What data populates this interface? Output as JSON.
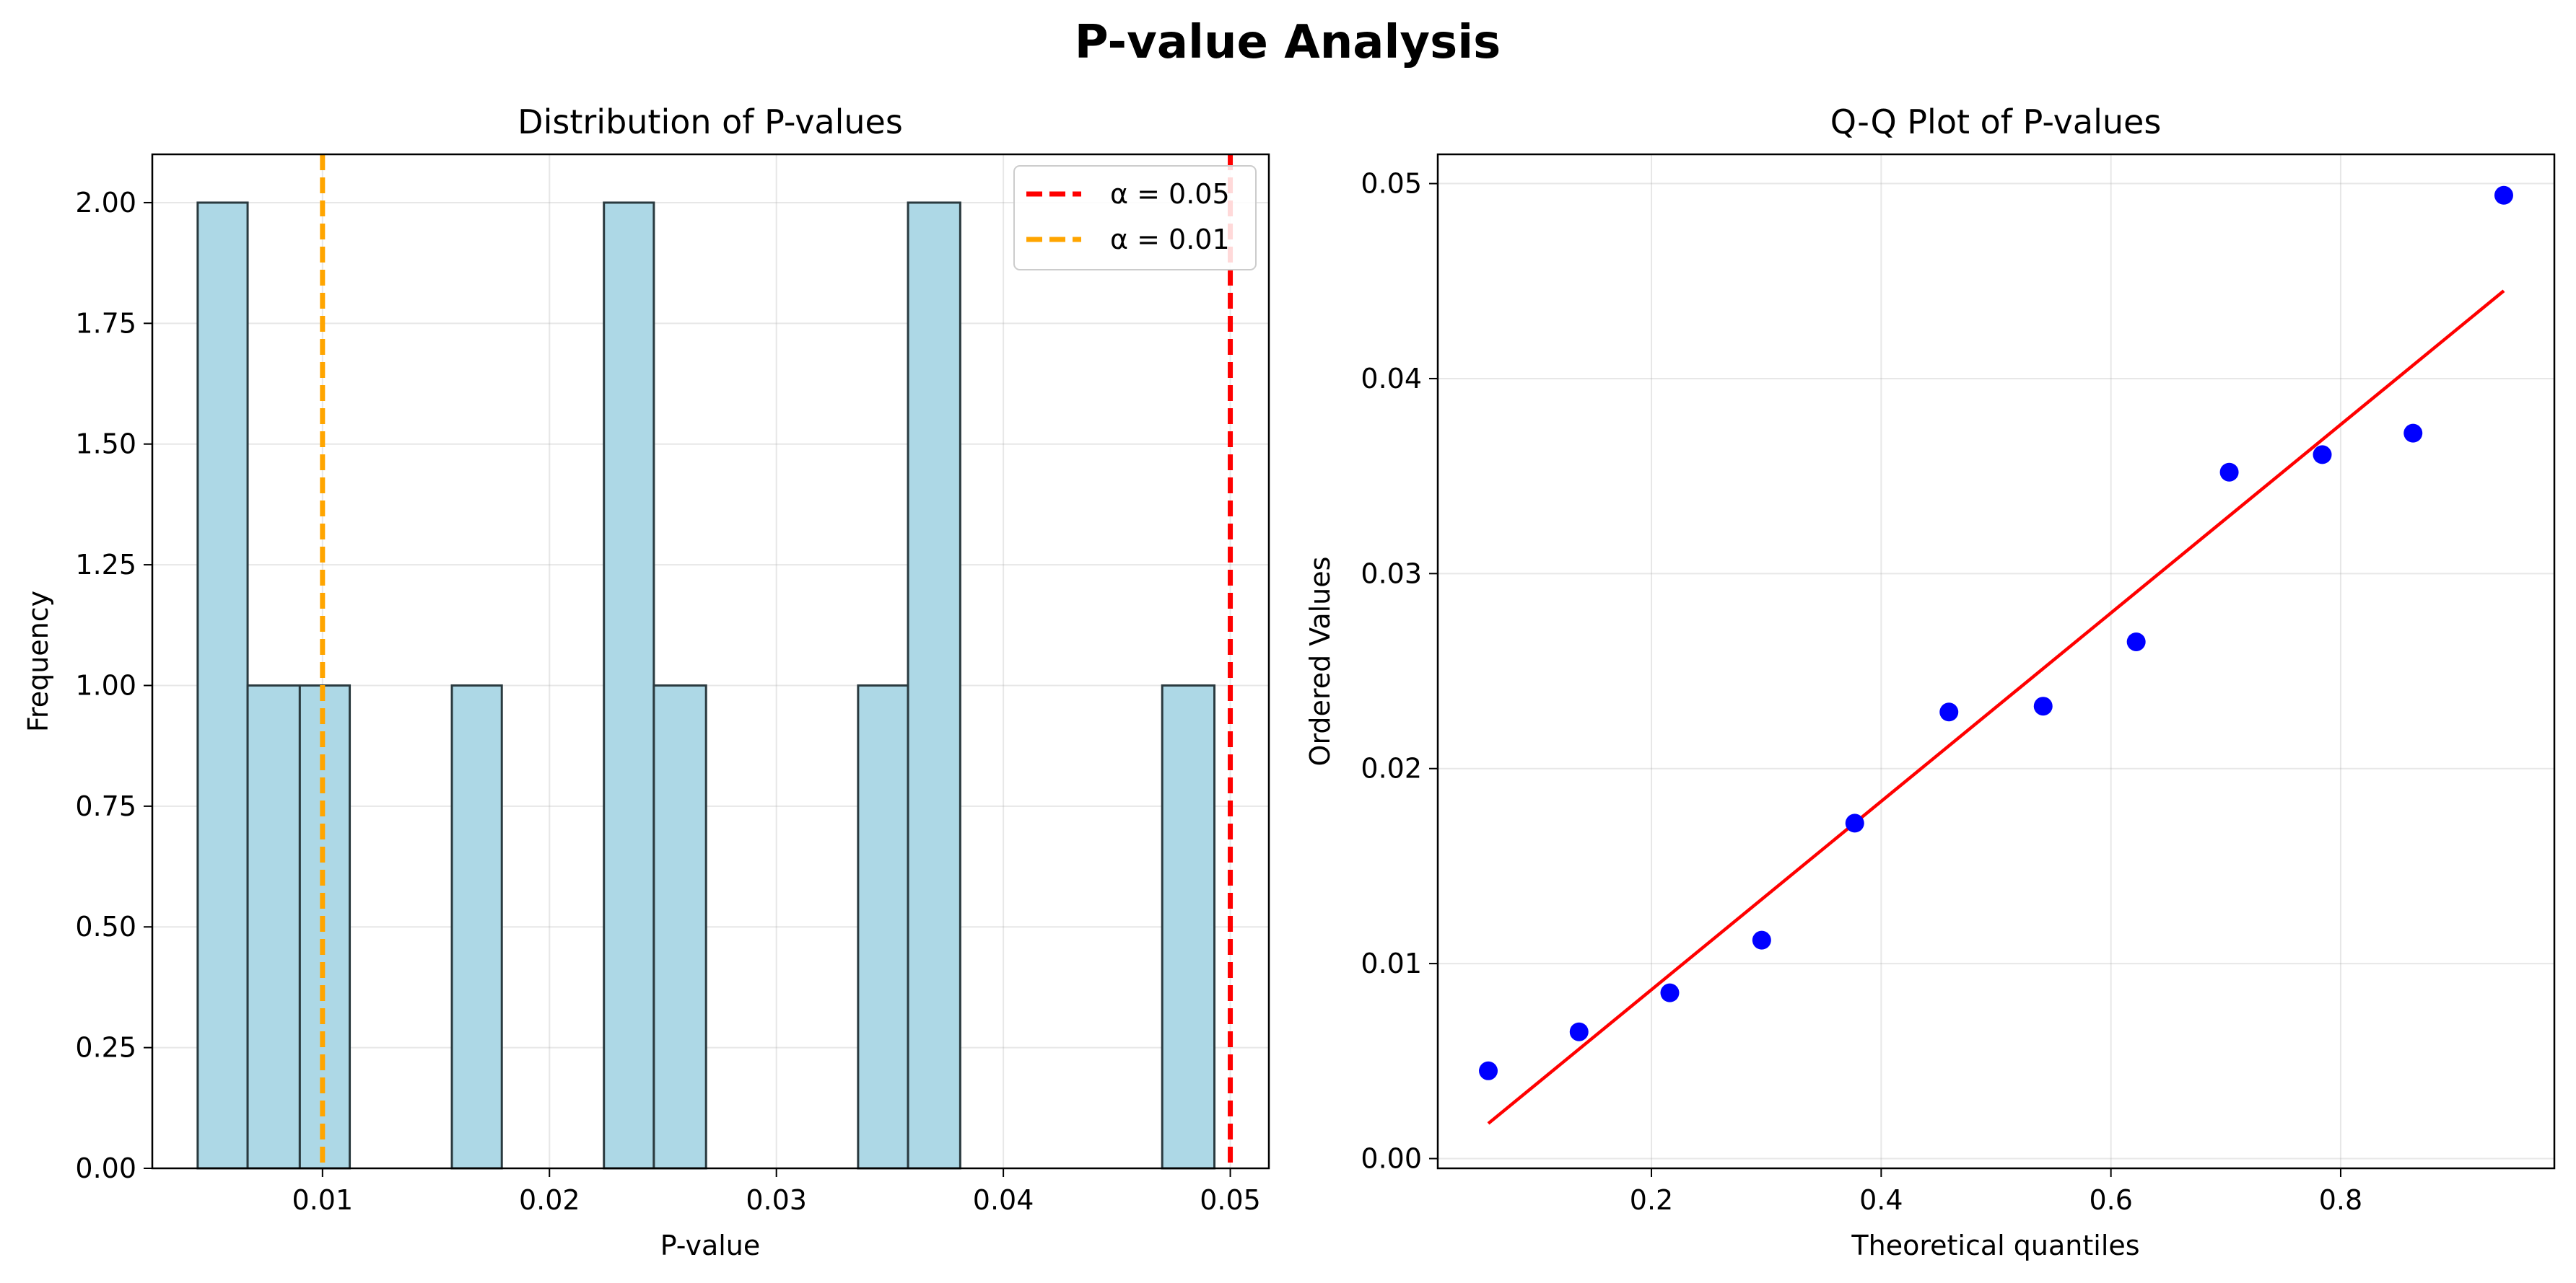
{
  "figure": {
    "title": "P-value Analysis"
  },
  "chart_data": [
    {
      "type": "bar",
      "title": "Distribution of P-values",
      "xlabel": "P-value",
      "ylabel": "Frequency",
      "xlim": [
        0.0025,
        0.0517
      ],
      "ylim": [
        0,
        2.1
      ],
      "xticks": [
        0.01,
        0.02,
        0.03,
        0.04,
        0.05
      ],
      "xtick_labels": [
        "0.01",
        "0.02",
        "0.03",
        "0.04",
        "0.05"
      ],
      "yticks": [
        0,
        0.25,
        0.5,
        0.75,
        1.0,
        1.25,
        1.5,
        1.75,
        2.0
      ],
      "ytick_labels": [
        "0.00",
        "0.25",
        "0.50",
        "0.75",
        "1.00",
        "1.25",
        "1.50",
        "1.75",
        "2.00"
      ],
      "bins": [
        {
          "x0": 0.0045,
          "x1": 0.0067,
          "count": 2
        },
        {
          "x0": 0.0067,
          "x1": 0.009,
          "count": 1
        },
        {
          "x0": 0.009,
          "x1": 0.0112,
          "count": 1
        },
        {
          "x0": 0.0157,
          "x1": 0.0179,
          "count": 1
        },
        {
          "x0": 0.0224,
          "x1": 0.0246,
          "count": 2
        },
        {
          "x0": 0.0246,
          "x1": 0.0269,
          "count": 1
        },
        {
          "x0": 0.0336,
          "x1": 0.0358,
          "count": 1
        },
        {
          "x0": 0.0358,
          "x1": 0.0381,
          "count": 2
        },
        {
          "x0": 0.047,
          "x1": 0.0493,
          "count": 1
        }
      ],
      "bar_color": "#add8e6",
      "bar_edge_color": "#2a3a3f",
      "reference_lines": [
        {
          "label": "α = 0.05",
          "x": 0.05,
          "color": "#ff0000"
        },
        {
          "label": "α = 0.01",
          "x": 0.01,
          "color": "#ffa500"
        }
      ],
      "legend_position": "top-right",
      "grid": true
    },
    {
      "type": "scatter",
      "title": "Q-Q Plot of P-values",
      "xlabel": "Theoretical quantiles",
      "ylabel": "Ordered Values",
      "xlim": [
        0.014,
        0.986
      ],
      "ylim": [
        -0.0005,
        0.0515
      ],
      "xticks": [
        0.2,
        0.4,
        0.6,
        0.8
      ],
      "xtick_labels": [
        "0.2",
        "0.4",
        "0.6",
        "0.8"
      ],
      "yticks": [
        0.0,
        0.01,
        0.02,
        0.03,
        0.04,
        0.05
      ],
      "ytick_labels": [
        "0.00",
        "0.01",
        "0.02",
        "0.03",
        "0.04",
        "0.05"
      ],
      "points": [
        {
          "x": 0.058,
          "y": 0.0045
        },
        {
          "x": 0.137,
          "y": 0.0065
        },
        {
          "x": 0.216,
          "y": 0.0085
        },
        {
          "x": 0.296,
          "y": 0.0112
        },
        {
          "x": 0.377,
          "y": 0.0172
        },
        {
          "x": 0.459,
          "y": 0.0229
        },
        {
          "x": 0.541,
          "y": 0.0232
        },
        {
          "x": 0.622,
          "y": 0.0265
        },
        {
          "x": 0.703,
          "y": 0.0352
        },
        {
          "x": 0.784,
          "y": 0.0361
        },
        {
          "x": 0.863,
          "y": 0.0372
        },
        {
          "x": 0.942,
          "y": 0.0494
        }
      ],
      "point_color": "#0000ff",
      "fit_line": {
        "x": [
          0.058,
          0.942
        ],
        "y": [
          0.0018,
          0.0445
        ],
        "color": "#ff0000"
      },
      "grid": true
    }
  ]
}
